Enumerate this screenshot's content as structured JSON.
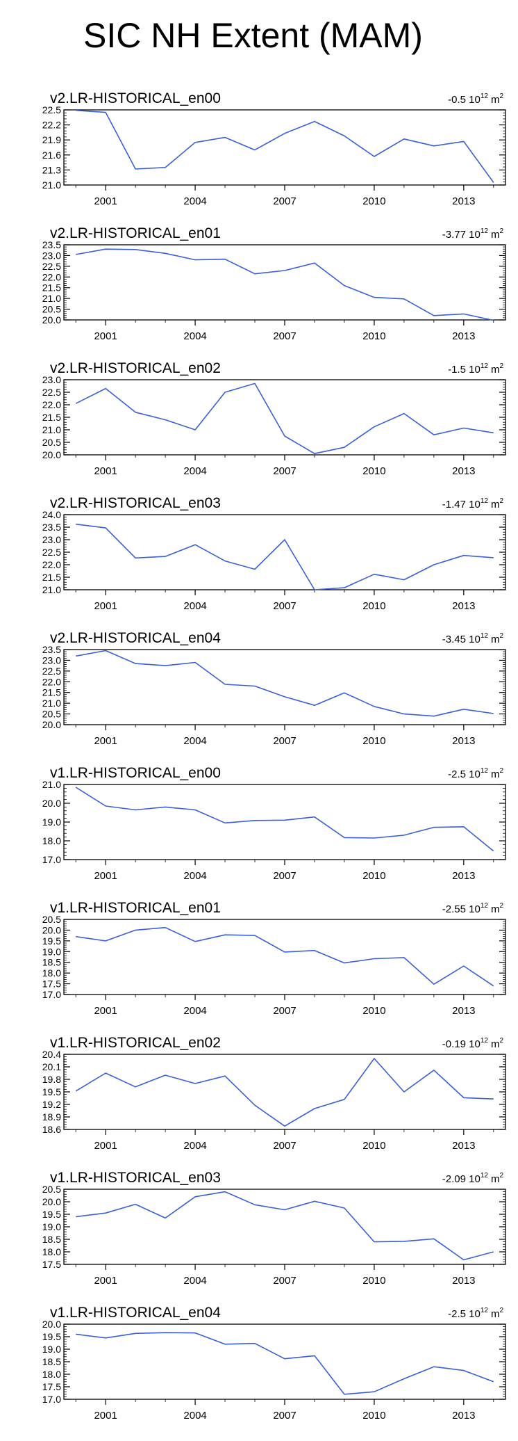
{
  "title": "SIC NH Extent (MAM)",
  "line_color": "#3a5fd9",
  "chart_data": [
    {
      "type": "line",
      "title": "v2.LR-HISTORICAL_en00",
      "trend": "-0.5 10",
      "trend_exp": "12",
      "trend_unit": "m",
      "trend_unit_exp": "2",
      "x": [
        2000,
        2001,
        2002,
        2003,
        2004,
        2005,
        2006,
        2007,
        2008,
        2009,
        2010,
        2011,
        2012,
        2013,
        2014
      ],
      "values": [
        22.49,
        22.45,
        21.32,
        21.35,
        21.85,
        21.95,
        21.7,
        22.03,
        22.27,
        21.98,
        21.57,
        21.92,
        21.78,
        21.87,
        21.05
      ],
      "ylim": [
        21.0,
        22.5
      ],
      "yticks": [
        "21.0",
        "21.3",
        "21.6",
        "21.9",
        "22.2",
        "22.5"
      ],
      "xticks": [
        "2001",
        "2004",
        "2007",
        "2010",
        "2013"
      ]
    },
    {
      "type": "line",
      "title": "v2.LR-HISTORICAL_en01",
      "trend": "-3.77 10",
      "trend_exp": "12",
      "trend_unit": "m",
      "trend_unit_exp": "2",
      "x": [
        2000,
        2001,
        2002,
        2003,
        2004,
        2005,
        2006,
        2007,
        2008,
        2009,
        2010,
        2011,
        2012,
        2013,
        2014
      ],
      "values": [
        23.05,
        23.3,
        23.28,
        23.1,
        22.8,
        22.83,
        22.15,
        22.3,
        22.65,
        21.6,
        21.05,
        20.98,
        20.2,
        20.28,
        19.98
      ],
      "ylim": [
        20.0,
        23.5
      ],
      "yticks": [
        "20.0",
        "20.5",
        "21.0",
        "21.5",
        "22.0",
        "22.5",
        "23.0",
        "23.5"
      ],
      "xticks": [
        "2001",
        "2004",
        "2007",
        "2010",
        "2013"
      ]
    },
    {
      "type": "line",
      "title": "v2.LR-HISTORICAL_en02",
      "trend": "-1.5 10",
      "trend_exp": "12",
      "trend_unit": "m",
      "trend_unit_exp": "2",
      "x": [
        2000,
        2001,
        2002,
        2003,
        2004,
        2005,
        2006,
        2007,
        2008,
        2009,
        2010,
        2011,
        2012,
        2013,
        2014
      ],
      "values": [
        22.05,
        22.65,
        21.7,
        21.4,
        21.0,
        22.5,
        22.85,
        20.75,
        20.05,
        20.3,
        21.12,
        21.65,
        20.8,
        21.07,
        20.88
      ],
      "ylim": [
        20.0,
        23.0
      ],
      "yticks": [
        "20.0",
        "20.5",
        "21.0",
        "21.5",
        "22.0",
        "22.5",
        "23.0"
      ],
      "xticks": [
        "2001",
        "2004",
        "2007",
        "2010",
        "2013"
      ]
    },
    {
      "type": "line",
      "title": "v2.LR-HISTORICAL_en03",
      "trend": "-1.47 10",
      "trend_exp": "12",
      "trend_unit": "m",
      "trend_unit_exp": "2",
      "x": [
        2000,
        2001,
        2002,
        2003,
        2004,
        2005,
        2006,
        2007,
        2008,
        2009,
        2010,
        2011,
        2012,
        2013,
        2014
      ],
      "values": [
        23.62,
        23.47,
        22.27,
        22.33,
        22.8,
        22.15,
        21.82,
        23.0,
        21.0,
        21.08,
        21.62,
        21.4,
        22.0,
        22.37,
        22.28
      ],
      "ylim": [
        21.0,
        24.0
      ],
      "yticks": [
        "21.0",
        "21.5",
        "22.0",
        "22.5",
        "23.0",
        "23.5",
        "24.0"
      ],
      "xticks": [
        "2001",
        "2004",
        "2007",
        "2010",
        "2013"
      ]
    },
    {
      "type": "line",
      "title": "v2.LR-HISTORICAL_en04",
      "trend": "-3.45 10",
      "trend_exp": "12",
      "trend_unit": "m",
      "trend_unit_exp": "2",
      "x": [
        2000,
        2001,
        2002,
        2003,
        2004,
        2005,
        2006,
        2007,
        2008,
        2009,
        2010,
        2011,
        2012,
        2013,
        2014
      ],
      "values": [
        23.2,
        23.45,
        22.85,
        22.75,
        22.9,
        21.88,
        21.8,
        21.3,
        20.9,
        21.48,
        20.85,
        20.5,
        20.4,
        20.72,
        20.52
      ],
      "ylim": [
        20.0,
        23.5
      ],
      "yticks": [
        "20.0",
        "20.5",
        "21.0",
        "21.5",
        "22.0",
        "22.5",
        "23.0",
        "23.5"
      ],
      "xticks": [
        "2001",
        "2004",
        "2007",
        "2010",
        "2013"
      ]
    },
    {
      "type": "line",
      "title": "v1.LR-HISTORICAL_en00",
      "trend": "-2.5 10",
      "trend_exp": "12",
      "trend_unit": "m",
      "trend_unit_exp": "2",
      "x": [
        2000,
        2001,
        2002,
        2003,
        2004,
        2005,
        2006,
        2007,
        2008,
        2009,
        2010,
        2011,
        2012,
        2013,
        2014
      ],
      "values": [
        20.85,
        19.85,
        19.65,
        19.8,
        19.65,
        18.95,
        19.08,
        19.1,
        19.27,
        18.17,
        18.15,
        18.3,
        18.72,
        18.75,
        17.45
      ],
      "ylim": [
        17.0,
        21.0
      ],
      "yticks": [
        "17.0",
        "18.0",
        "19.0",
        "20.0",
        "21.0"
      ],
      "xticks": [
        "2001",
        "2004",
        "2007",
        "2010",
        "2013"
      ]
    },
    {
      "type": "line",
      "title": "v1.LR-HISTORICAL_en01",
      "trend": "-2.55 10",
      "trend_exp": "12",
      "trend_unit": "m",
      "trend_unit_exp": "2",
      "x": [
        2000,
        2001,
        2002,
        2003,
        2004,
        2005,
        2006,
        2007,
        2008,
        2009,
        2010,
        2011,
        2012,
        2013,
        2014
      ],
      "values": [
        19.7,
        19.5,
        20.0,
        20.12,
        19.47,
        19.78,
        19.75,
        18.98,
        19.05,
        18.47,
        18.67,
        18.72,
        17.48,
        18.33,
        17.4
      ],
      "ylim": [
        17.0,
        20.5
      ],
      "yticks": [
        "17.0",
        "17.5",
        "18.0",
        "18.5",
        "19.0",
        "19.5",
        "20.0",
        "20.5"
      ],
      "xticks": [
        "2001",
        "2004",
        "2007",
        "2010",
        "2013"
      ]
    },
    {
      "type": "line",
      "title": "v1.LR-HISTORICAL_en02",
      "trend": "-0.19 10",
      "trend_exp": "12",
      "trend_unit": "m",
      "trend_unit_exp": "2",
      "x": [
        2000,
        2001,
        2002,
        2003,
        2004,
        2005,
        2006,
        2007,
        2008,
        2009,
        2010,
        2011,
        2012,
        2013,
        2014
      ],
      "values": [
        19.52,
        19.95,
        19.62,
        19.9,
        19.7,
        19.88,
        19.18,
        18.68,
        19.1,
        19.32,
        20.3,
        19.5,
        20.02,
        19.36,
        19.33
      ],
      "ylim": [
        18.6,
        20.4
      ],
      "yticks": [
        "18.6",
        "18.9",
        "19.2",
        "19.5",
        "19.8",
        "20.1",
        "20.4"
      ],
      "xticks": [
        "2001",
        "2004",
        "2007",
        "2010",
        "2013"
      ]
    },
    {
      "type": "line",
      "title": "v1.LR-HISTORICAL_en03",
      "trend": "-2.09 10",
      "trend_exp": "12",
      "trend_unit": "m",
      "trend_unit_exp": "2",
      "x": [
        2000,
        2001,
        2002,
        2003,
        2004,
        2005,
        2006,
        2007,
        2008,
        2009,
        2010,
        2011,
        2012,
        2013,
        2014
      ],
      "values": [
        19.4,
        19.55,
        19.9,
        19.35,
        20.2,
        20.4,
        19.88,
        19.68,
        20.02,
        19.75,
        18.4,
        18.42,
        18.52,
        17.68,
        18.0
      ],
      "ylim": [
        17.5,
        20.5
      ],
      "yticks": [
        "17.5",
        "18.0",
        "18.5",
        "19.0",
        "19.5",
        "20.0",
        "20.5"
      ],
      "xticks": [
        "2001",
        "2004",
        "2007",
        "2010",
        "2013"
      ]
    },
    {
      "type": "line",
      "title": "v1.LR-HISTORICAL_en04",
      "trend": "-2.5 10",
      "trend_exp": "12",
      "trend_unit": "m",
      "trend_unit_exp": "2",
      "x": [
        2000,
        2001,
        2002,
        2003,
        2004,
        2005,
        2006,
        2007,
        2008,
        2009,
        2010,
        2011,
        2012,
        2013,
        2014
      ],
      "values": [
        19.6,
        19.45,
        19.63,
        19.66,
        19.65,
        19.2,
        19.23,
        18.62,
        18.74,
        17.2,
        17.3,
        17.82,
        18.3,
        18.15,
        17.7
      ],
      "ylim": [
        17.0,
        20.0
      ],
      "yticks": [
        "17.0",
        "17.5",
        "18.0",
        "18.5",
        "19.0",
        "19.5",
        "20.0"
      ],
      "xticks": [
        "2001",
        "2004",
        "2007",
        "2010",
        "2013"
      ]
    }
  ]
}
